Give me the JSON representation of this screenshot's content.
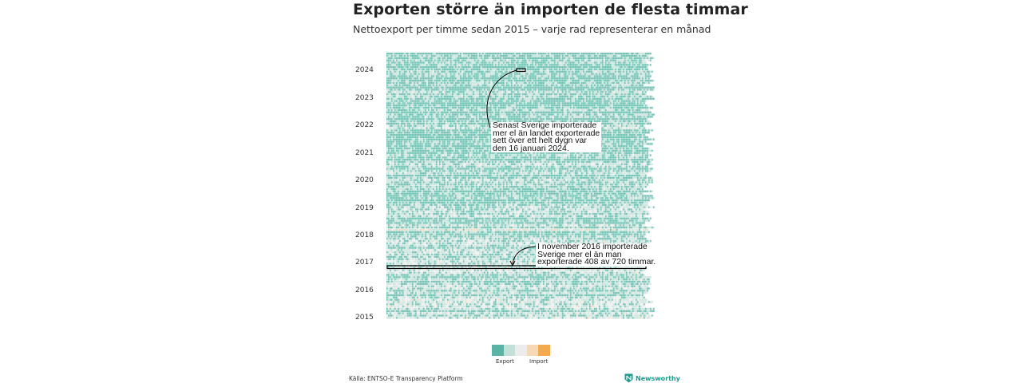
{
  "chart_data": {
    "type": "heatmap",
    "title": "Exporten större än importen de flesta timmar",
    "subtitle": "Nettoexport per timme sedan 2015 – varje rad representerar en månad",
    "y_ticks": [
      "2024",
      "2023",
      "2022",
      "2021",
      "2020",
      "2019",
      "2018",
      "2017",
      "2016",
      "2015"
    ],
    "legend": {
      "labels": [
        "Export",
        "Import"
      ],
      "colors": [
        "#5ab3a4",
        "#c3e0d8",
        "#ececec",
        "#f7d8b4",
        "#f5a94e"
      ]
    },
    "annotations": [
      {
        "text": "Senast Sverige importerade\nmer el än landet exporterade\nsett över ett helt dygn var\nden 16 januari 2024."
      },
      {
        "text": "I november 2016 importerade\nSverige mer el än man\nexporterade 408 av 720 timmar."
      }
    ]
  },
  "source": "Källa: ENTSO-E Transparency Platform",
  "brand": "Newsworthy"
}
